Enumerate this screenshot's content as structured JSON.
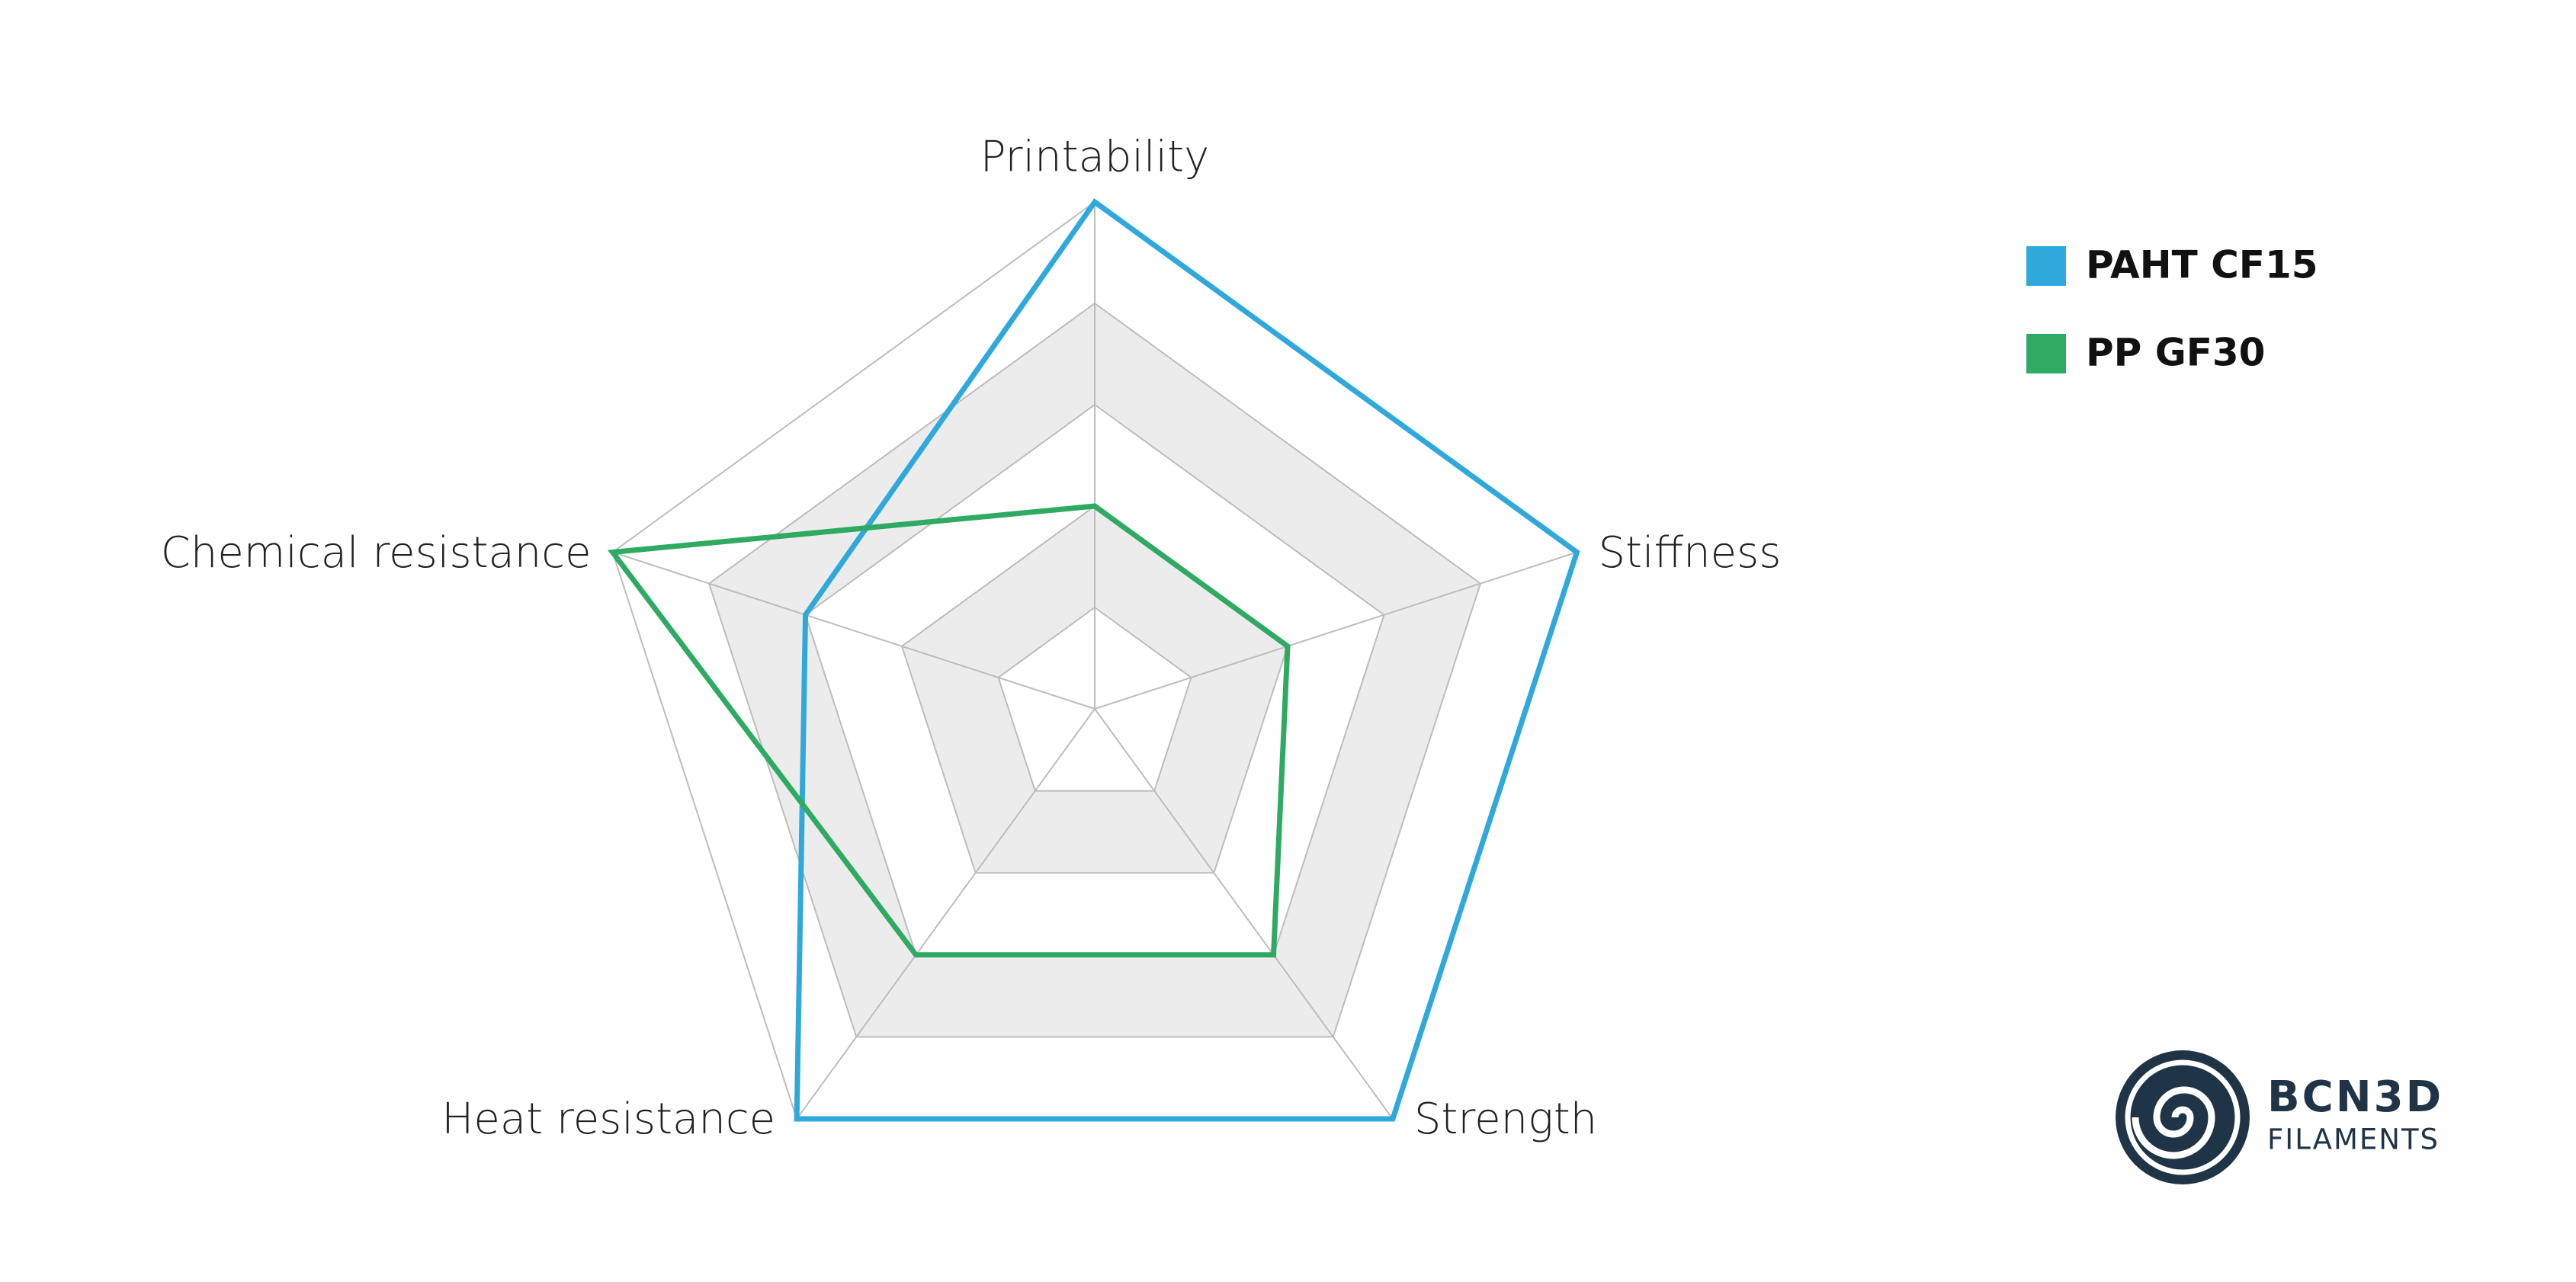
{
  "chart_data": {
    "type": "radar",
    "categories": [
      "Printability",
      "Stiffness",
      "Strength",
      "Heat resistance",
      "Chemical resistance"
    ],
    "series": [
      {
        "name": "PAHT CF15",
        "color": "#2fa8dc",
        "values": [
          5,
          5,
          5,
          5,
          3
        ]
      },
      {
        "name": "PP GF30",
        "color": "#2eaa62",
        "values": [
          2,
          2,
          3,
          3,
          5
        ]
      }
    ],
    "rlim": [
      0,
      5
    ],
    "rticks": [
      1,
      2,
      3,
      4,
      5
    ],
    "grid": true,
    "legend": "top-right"
  },
  "logo": {
    "brand": "BCN3D",
    "subtitle": "FILAMENTS"
  }
}
